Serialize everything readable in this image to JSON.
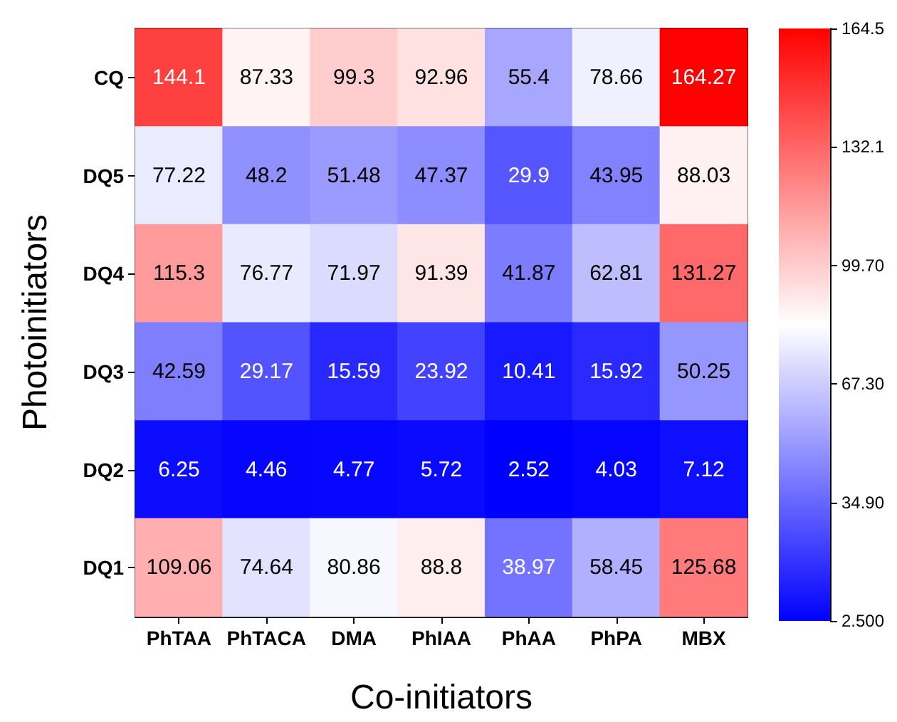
{
  "chart_data": {
    "type": "heatmap",
    "xlabel": "Co-initiators",
    "ylabel": "Photoinitiators",
    "categories": [
      "PhTAA",
      "PhTACA",
      "DMA",
      "PhIAA",
      "PhAA",
      "PhPA",
      "MBX"
    ],
    "y_categories": [
      "CQ",
      "DQ5",
      "DQ4",
      "DQ3",
      "DQ2",
      "DQ1"
    ],
    "cells": [
      [
        144.1,
        87.33,
        99.3,
        92.96,
        55.4,
        78.66,
        164.27
      ],
      [
        77.22,
        48.2,
        51.48,
        47.37,
        29.9,
        43.95,
        88.03
      ],
      [
        115.3,
        76.77,
        71.97,
        91.39,
        41.87,
        62.81,
        131.27
      ],
      [
        42.59,
        29.17,
        15.59,
        23.92,
        10.41,
        15.92,
        50.25
      ],
      [
        6.25,
        4.46,
        4.77,
        5.72,
        2.52,
        4.03,
        7.12
      ],
      [
        109.06,
        74.64,
        80.86,
        88.8,
        38.97,
        58.45,
        125.68
      ]
    ],
    "clim": [
      2.5,
      164.5
    ],
    "cticks": [
      {
        "value": 2.5,
        "label": "2.500"
      },
      {
        "value": 34.9,
        "label": "34.90"
      },
      {
        "value": 67.3,
        "label": "67.30"
      },
      {
        "value": 99.7,
        "label": "99.70"
      },
      132.1,
      164.5
    ],
    "data_labels": true
  }
}
